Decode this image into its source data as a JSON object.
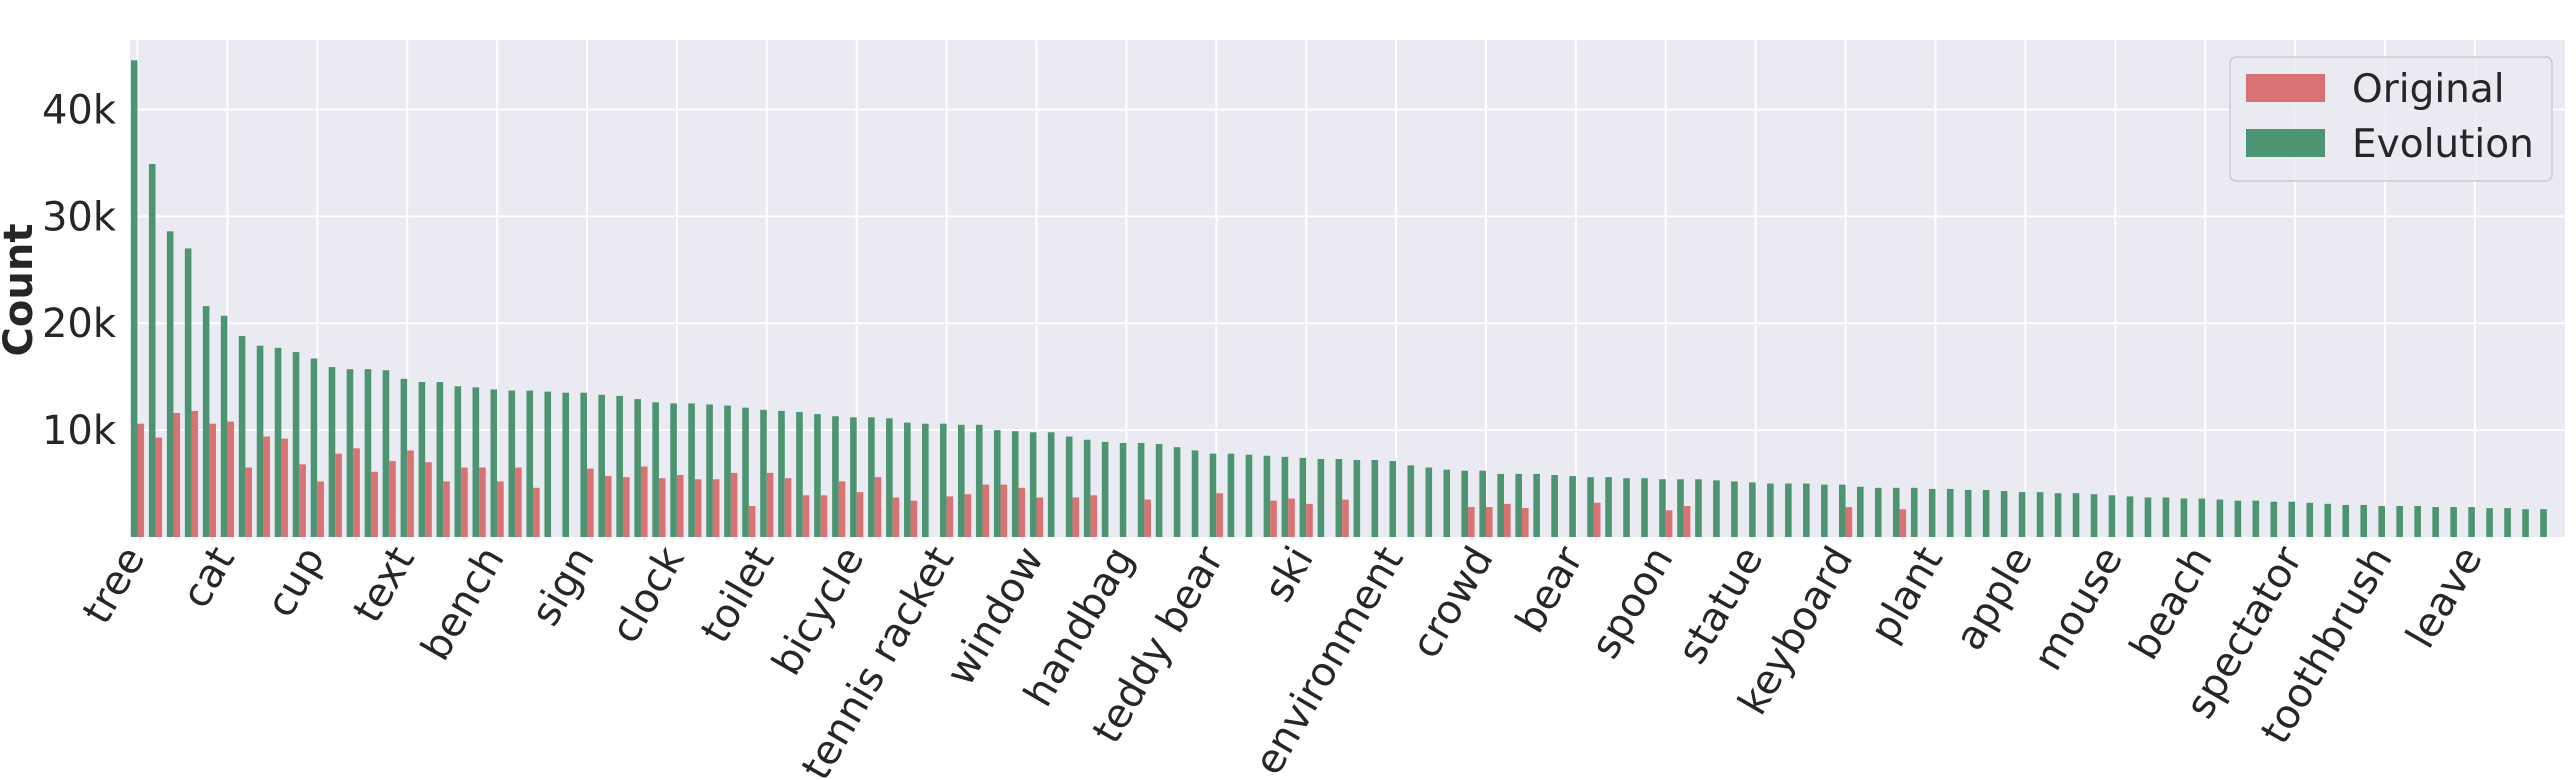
{
  "chart_data": {
    "type": "bar",
    "ylabel": "Count",
    "ylim": [
      0,
      46500
    ],
    "yticks": [
      10000,
      20000,
      30000,
      40000
    ],
    "ytick_labels": [
      "10k",
      "20k",
      "30k",
      "40k"
    ],
    "grid": true,
    "legend_position": "top-right",
    "category_count": 135,
    "xtick_labels": [
      {
        "index": 0,
        "label": "tree"
      },
      {
        "index": 5,
        "label": "cat"
      },
      {
        "index": 10,
        "label": "cup"
      },
      {
        "index": 15,
        "label": "text"
      },
      {
        "index": 20,
        "label": "bench"
      },
      {
        "index": 25,
        "label": "sign"
      },
      {
        "index": 30,
        "label": "clock"
      },
      {
        "index": 35,
        "label": "toilet"
      },
      {
        "index": 40,
        "label": "bicycle"
      },
      {
        "index": 45,
        "label": "tennis racket"
      },
      {
        "index": 50,
        "label": "window"
      },
      {
        "index": 55,
        "label": "handbag"
      },
      {
        "index": 60,
        "label": "teddy bear"
      },
      {
        "index": 65,
        "label": "ski"
      },
      {
        "index": 70,
        "label": "environment"
      },
      {
        "index": 75,
        "label": "crowd"
      },
      {
        "index": 80,
        "label": "bear"
      },
      {
        "index": 85,
        "label": "spoon"
      },
      {
        "index": 90,
        "label": "statue"
      },
      {
        "index": 95,
        "label": "keyboard"
      },
      {
        "index": 100,
        "label": "plant"
      },
      {
        "index": 105,
        "label": "apple"
      },
      {
        "index": 110,
        "label": "mouse"
      },
      {
        "index": 115,
        "label": "beach"
      },
      {
        "index": 120,
        "label": "spectator"
      },
      {
        "index": 125,
        "label": "toothbrush"
      },
      {
        "index": 130,
        "label": "leave"
      }
    ],
    "series": [
      {
        "name": "Original",
        "color": "#d87273",
        "values": [
          10600,
          9300,
          11600,
          11800,
          10600,
          10800,
          6500,
          9400,
          9200,
          6800,
          5200,
          7800,
          8300,
          6100,
          7100,
          8100,
          7000,
          5200,
          6500,
          6500,
          5200,
          6500,
          4600,
          0,
          0,
          6400,
          5700,
          5600,
          6600,
          5500,
          5800,
          5400,
          5400,
          6000,
          2900,
          6000,
          5500,
          3900,
          3900,
          5200,
          4200,
          5600,
          3700,
          3400,
          0,
          3800,
          4000,
          4900,
          4900,
          4600,
          3700,
          0,
          3700,
          3900,
          0,
          0,
          3500,
          0,
          0,
          0,
          4100,
          0,
          0,
          3400,
          3600,
          3100,
          0,
          3500,
          0,
          0,
          0,
          0,
          0,
          0,
          2800,
          2800,
          3100,
          2700,
          0,
          0,
          0,
          3200,
          0,
          0,
          0,
          2500,
          2900,
          0,
          0,
          0,
          0,
          0,
          0,
          0,
          0,
          2800,
          0,
          0,
          2600,
          0,
          0,
          0,
          0,
          0,
          0,
          0,
          0,
          0,
          0,
          0,
          0,
          0,
          0,
          0,
          0,
          0,
          0,
          0,
          0,
          0,
          0,
          0,
          0,
          0,
          0,
          0,
          0,
          0,
          0,
          0,
          0,
          0,
          0,
          0,
          0
        ]
      },
      {
        "name": "Evolution",
        "color": "#4c9472",
        "values": [
          44600,
          34900,
          28600,
          27000,
          21600,
          20700,
          18800,
          17900,
          17700,
          17300,
          16700,
          15900,
          15700,
          15700,
          15600,
          14800,
          14500,
          14500,
          14100,
          14000,
          13800,
          13700,
          13700,
          13600,
          13500,
          13500,
          13300,
          13200,
          12900,
          12600,
          12500,
          12500,
          12400,
          12300,
          12100,
          11900,
          11800,
          11700,
          11500,
          11300,
          11200,
          11200,
          11100,
          10700,
          10600,
          10600,
          10500,
          10500,
          10000,
          9900,
          9800,
          9800,
          9400,
          9100,
          8900,
          8800,
          8800,
          8700,
          8400,
          8100,
          7800,
          7800,
          7700,
          7600,
          7500,
          7400,
          7300,
          7300,
          7200,
          7200,
          7100,
          6700,
          6500,
          6300,
          6200,
          6200,
          5900,
          5900,
          5900,
          5800,
          5700,
          5600,
          5600,
          5500,
          5500,
          5400,
          5400,
          5400,
          5300,
          5200,
          5100,
          5000,
          5000,
          5000,
          4900,
          4900,
          4700,
          4600,
          4600,
          4600,
          4500,
          4500,
          4400,
          4400,
          4300,
          4200,
          4200,
          4100,
          4100,
          4000,
          3900,
          3800,
          3700,
          3700,
          3600,
          3600,
          3500,
          3400,
          3400,
          3300,
          3300,
          3200,
          3100,
          3000,
          3000,
          2900,
          2900,
          2900,
          2800,
          2800,
          2800,
          2700,
          2700,
          2600,
          2600
        ]
      }
    ]
  }
}
